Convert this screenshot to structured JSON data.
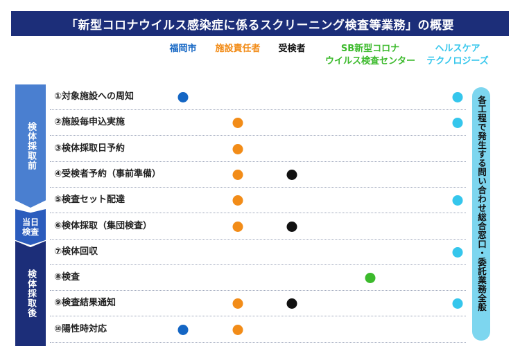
{
  "title": "「新型コロナウイルス感染症に係るスクリーニング検査等業務」の概要",
  "columns": [
    {
      "key": "fukuoka",
      "lines": [
        "福岡市"
      ],
      "color": "#1466c4"
    },
    {
      "key": "facility",
      "lines": [
        "施設責任者"
      ],
      "color": "#f28c18"
    },
    {
      "key": "examinee",
      "lines": [
        "受検者"
      ],
      "color": "#111111"
    },
    {
      "key": "sb",
      "lines": [
        "SB新型コロナ",
        "ウイルス検査センター"
      ],
      "color": "#3cba2c"
    },
    {
      "key": "health",
      "lines": [
        "ヘルスケア",
        "テクノロジーズ"
      ],
      "color": "#35c6ec"
    }
  ],
  "phases": [
    {
      "key": "before",
      "label": "検体採取前"
    },
    {
      "key": "day",
      "label": "当日検査"
    },
    {
      "key": "after",
      "label": "検体採取後"
    }
  ],
  "rows": [
    {
      "label": "①対象施設への周知",
      "marks": [
        "fukuoka",
        "health"
      ]
    },
    {
      "label": "②施設毎申込実施",
      "marks": [
        "facility",
        "health"
      ]
    },
    {
      "label": "③検体採取日予約",
      "marks": [
        "facility"
      ]
    },
    {
      "label": "④受検者予約（事前準備）",
      "marks": [
        "facility",
        "examinee"
      ]
    },
    {
      "label": "⑤検査セット配達",
      "marks": [
        "facility",
        "health"
      ]
    },
    {
      "label": "⑥検体採取（集団検査）",
      "marks": [
        "facility",
        "examinee"
      ]
    },
    {
      "label": "⑦検体回収",
      "marks": [
        "health"
      ]
    },
    {
      "label": "⑧検査",
      "marks": [
        "sb"
      ]
    },
    {
      "label": "⑨検査結果通知",
      "marks": [
        "facility",
        "examinee",
        "health"
      ]
    },
    {
      "label": "⑩陽性時対応",
      "marks": [
        "fukuoka",
        "facility"
      ]
    }
  ],
  "contact_label": "各工程で発生する問い合わせ総合窓口・委託業務全般"
}
